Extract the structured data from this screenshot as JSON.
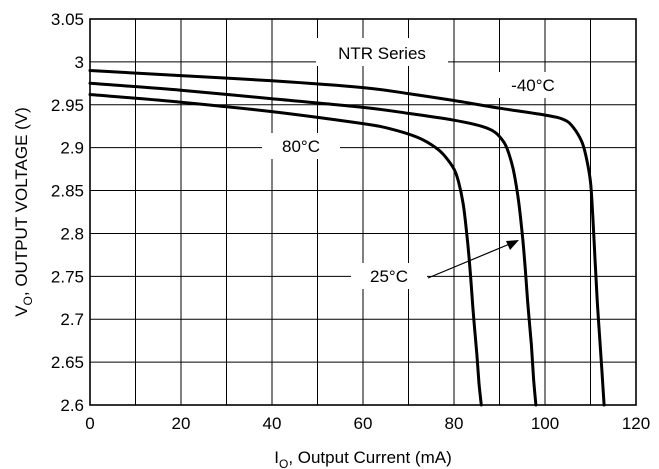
{
  "chart_data": {
    "type": "line",
    "title": "",
    "xlabel": {
      "main": "I",
      "sub": "O",
      "rest": ", Output Current (mA)"
    },
    "ylabel": {
      "main": "V",
      "sub": "O",
      "rest": ", OUTPUT VOLTAGE (V)"
    },
    "xlim": [
      0,
      120
    ],
    "ylim": [
      2.6,
      3.05
    ],
    "grid": true,
    "x_ticks": [
      0,
      20,
      40,
      60,
      80,
      100,
      120
    ],
    "x_tick_labels": [
      "0",
      "20",
      "40",
      "60",
      "80",
      "100",
      "120"
    ],
    "y_ticks": [
      2.6,
      2.65,
      2.7,
      2.75,
      2.8,
      2.85,
      2.9,
      2.95,
      3.0,
      3.05
    ],
    "y_tick_labels": [
      "2.6",
      "2.65",
      "2.7",
      "2.75",
      "2.8",
      "2.85",
      "2.9",
      "2.95",
      "3",
      "3.05"
    ],
    "series": [
      {
        "name": "-40°C",
        "x": [
          0,
          20,
          40,
          60,
          70,
          80,
          90,
          100,
          104,
          106,
          108,
          109,
          110,
          110.5,
          111,
          111.5,
          112,
          112.5,
          113
        ],
        "y": [
          2.99,
          2.984,
          2.978,
          2.97,
          2.963,
          2.955,
          2.946,
          2.938,
          2.933,
          2.925,
          2.908,
          2.89,
          2.86,
          2.82,
          2.77,
          2.72,
          2.68,
          2.64,
          2.6
        ]
      },
      {
        "name": "25°C",
        "x": [
          0,
          20,
          40,
          60,
          70,
          80,
          86,
          89,
          91,
          92,
          93,
          94,
          94.8,
          95.5,
          96.2,
          97,
          97.5,
          98
        ],
        "y": [
          2.975,
          2.967,
          2.957,
          2.947,
          2.94,
          2.932,
          2.925,
          2.918,
          2.906,
          2.894,
          2.875,
          2.845,
          2.81,
          2.77,
          2.72,
          2.67,
          2.63,
          2.6
        ]
      },
      {
        "name": "80°C",
        "x": [
          0,
          20,
          40,
          60,
          66,
          72,
          76,
          78,
          80,
          81,
          82,
          82.8,
          83.5,
          84.2,
          85,
          85.5,
          86
        ],
        "y": [
          2.962,
          2.953,
          2.942,
          2.928,
          2.922,
          2.912,
          2.9,
          2.89,
          2.875,
          2.86,
          2.835,
          2.8,
          2.76,
          2.71,
          2.66,
          2.625,
          2.6
        ]
      }
    ],
    "annotations": [
      {
        "id": "series-label",
        "text": "NTR Series"
      },
      {
        "id": "label-m40",
        "text": "-40°C"
      },
      {
        "id": "label-25",
        "text": "25°C"
      },
      {
        "id": "label-80",
        "text": "80°C"
      }
    ]
  }
}
